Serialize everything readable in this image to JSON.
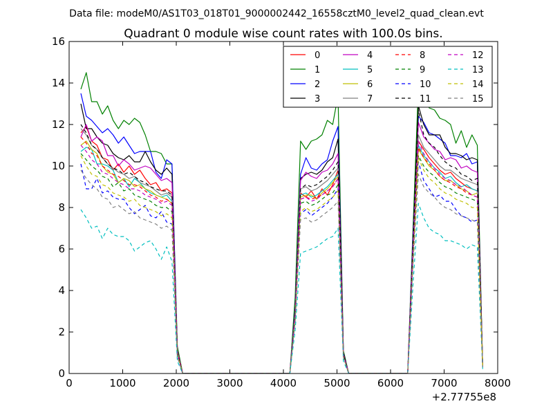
{
  "suptitle": "Data file: modeM0/AS1T03_018T01_9000002442_16558cztM0_level2_quad_clean.evt",
  "chart_data": {
    "type": "line",
    "title": "Quadrant 0 module wise count rates with 100.0s bins.",
    "xlabel": "",
    "ylabel": "",
    "x_offset_label": "+2.77755e8",
    "xlim": [
      0,
      8000
    ],
    "ylim": [
      0,
      16
    ],
    "xticks": [
      0,
      1000,
      2000,
      3000,
      4000,
      5000,
      6000,
      7000,
      8000
    ],
    "yticks": [
      0,
      2,
      4,
      6,
      8,
      10,
      12,
      14,
      16
    ],
    "grid": false,
    "legend": {
      "placement": "top-right",
      "columns": 4
    },
    "x": [
      220,
      320,
      420,
      520,
      620,
      720,
      820,
      920,
      1020,
      1120,
      1220,
      1320,
      1420,
      1520,
      1620,
      1720,
      1820,
      1920,
      2020,
      2120,
      4120,
      4220,
      4320,
      4420,
      4520,
      4620,
      4720,
      4820,
      4920,
      5020,
      5120,
      5220,
      6320,
      6420,
      6520,
      6620,
      6720,
      6820,
      6920,
      7020,
      7120,
      7220,
      7320,
      7420,
      7520,
      7620,
      7720
    ],
    "series": [
      {
        "name": "0",
        "color": "#ff0000",
        "dash": "solid",
        "values": [
          11.6,
          11.9,
          11.2,
          11.0,
          10.4,
          10.3,
          9.8,
          10.1,
          9.7,
          10.0,
          9.6,
          9.8,
          9.4,
          9.1,
          9.2,
          8.8,
          8.9,
          8.7,
          1.2,
          0.0,
          0.0,
          3.0,
          8.7,
          8.5,
          8.8,
          8.4,
          8.9,
          8.6,
          9.1,
          9.8,
          0.9,
          0.0,
          0.0,
          6.0,
          11.2,
          10.8,
          10.4,
          10.1,
          9.8,
          9.6,
          9.7,
          9.4,
          9.2,
          9.0,
          8.9,
          8.8,
          0.3
        ]
      },
      {
        "name": "1",
        "color": "#008000",
        "dash": "solid",
        "values": [
          13.7,
          14.5,
          13.1,
          13.1,
          12.5,
          12.9,
          12.2,
          11.8,
          12.2,
          12.0,
          12.3,
          12.1,
          11.5,
          10.7,
          10.7,
          10.6,
          10.1,
          10.1,
          1.3,
          0.0,
          0.0,
          3.7,
          11.2,
          10.8,
          11.2,
          11.3,
          11.5,
          12.2,
          12.0,
          13.4,
          1.1,
          0.0,
          0.0,
          7.0,
          13.9,
          13.6,
          12.8,
          12.7,
          12.3,
          12.2,
          12.0,
          11.1,
          11.7,
          10.9,
          11.5,
          11.0,
          0.3
        ]
      },
      {
        "name": "2",
        "color": "#0000ff",
        "dash": "solid",
        "values": [
          13.5,
          12.4,
          12.2,
          11.9,
          11.6,
          11.8,
          11.5,
          11.1,
          11.4,
          11.0,
          10.6,
          10.7,
          10.7,
          10.7,
          9.7,
          9.4,
          10.3,
          10.1,
          1.1,
          0.0,
          0.0,
          3.2,
          9.6,
          10.4,
          9.9,
          9.8,
          10.1,
          10.3,
          11.2,
          11.9,
          1.0,
          0.0,
          0.0,
          6.6,
          12.4,
          12.1,
          11.6,
          11.5,
          11.3,
          11.1,
          10.5,
          10.5,
          10.4,
          10.6,
          10.1,
          10.2,
          0.3
        ]
      },
      {
        "name": "3",
        "color": "#000000",
        "dash": "solid",
        "values": [
          13.0,
          11.8,
          11.8,
          11.4,
          11.1,
          11.0,
          10.6,
          10.4,
          10.3,
          10.5,
          10.2,
          10.2,
          10.7,
          10.2,
          9.8,
          9.6,
          9.9,
          9.6,
          1.1,
          0.0,
          0.0,
          3.1,
          9.4,
          9.6,
          9.7,
          9.6,
          9.8,
          10.2,
          10.4,
          11.3,
          1.0,
          0.0,
          0.0,
          6.4,
          12.9,
          12.0,
          11.5,
          11.5,
          11.5,
          10.9,
          10.6,
          10.6,
          10.5,
          10.3,
          10.4,
          10.3,
          0.3
        ]
      },
      {
        "name": "4",
        "color": "#c000c0",
        "dash": "solid",
        "values": [
          11.4,
          12.0,
          11.2,
          11.4,
          11.2,
          10.5,
          10.5,
          10.0,
          10.3,
          10.1,
          9.8,
          9.9,
          10.0,
          9.9,
          9.6,
          9.3,
          9.4,
          9.2,
          1.1,
          0.0,
          0.0,
          3.0,
          9.3,
          9.7,
          9.5,
          9.4,
          9.7,
          9.8,
          10.1,
          10.6,
          0.9,
          0.0,
          0.0,
          6.3,
          12.1,
          11.4,
          11.1,
          10.8,
          10.7,
          10.3,
          10.4,
          10.3,
          9.9,
          10.0,
          9.8,
          9.7,
          0.3
        ]
      },
      {
        "name": "5",
        "color": "#00bfbf",
        "dash": "solid",
        "values": [
          10.7,
          10.9,
          10.8,
          10.1,
          10.1,
          10.0,
          9.8,
          9.2,
          9.4,
          9.0,
          9.4,
          9.2,
          8.9,
          8.7,
          8.6,
          8.5,
          8.6,
          8.3,
          1.0,
          0.0,
          0.0,
          2.9,
          8.6,
          8.7,
          8.5,
          8.6,
          8.8,
          9.0,
          9.3,
          9.6,
          0.9,
          0.0,
          0.0,
          5.9,
          11.0,
          10.5,
          10.2,
          9.9,
          9.7,
          9.4,
          9.5,
          9.2,
          9.0,
          9.1,
          8.9,
          8.8,
          0.3
        ]
      },
      {
        "name": "6",
        "color": "#bfbf00",
        "dash": "solid",
        "values": [
          11.0,
          11.2,
          10.8,
          10.6,
          10.0,
          9.7,
          9.6,
          9.2,
          9.4,
          9.3,
          9.0,
          9.1,
          8.9,
          8.8,
          8.6,
          8.5,
          8.4,
          8.2,
          1.0,
          0.0,
          0.0,
          2.8,
          8.5,
          8.6,
          8.6,
          8.4,
          8.7,
          8.9,
          9.2,
          9.5,
          0.9,
          0.0,
          0.0,
          5.8,
          10.8,
          10.4,
          10.0,
          9.8,
          9.5,
          9.3,
          9.3,
          9.1,
          8.9,
          8.8,
          8.6,
          8.7,
          0.3
        ]
      },
      {
        "name": "7",
        "color": "#808080",
        "dash": "solid",
        "values": [
          11.8,
          11.5,
          11.0,
          10.8,
          10.4,
          10.1,
          9.9,
          9.7,
          9.6,
          9.4,
          9.5,
          9.2,
          9.1,
          9.0,
          8.8,
          8.6,
          8.7,
          8.5,
          1.0,
          0.0,
          0.0,
          2.9,
          8.9,
          9.0,
          8.8,
          8.9,
          9.1,
          9.3,
          9.6,
          9.9,
          0.9,
          0.0,
          0.0,
          6.1,
          11.5,
          10.9,
          10.6,
          10.3,
          10.0,
          9.8,
          9.8,
          9.6,
          9.4,
          9.3,
          9.2,
          9.1,
          0.3
        ]
      },
      {
        "name": "8",
        "color": "#ff0000",
        "dash": "dashed",
        "values": [
          11.4,
          11.1,
          10.6,
          10.5,
          10.0,
          9.8,
          9.6,
          9.5,
          9.3,
          9.1,
          9.1,
          9.0,
          8.8,
          8.6,
          8.5,
          8.3,
          8.4,
          8.2,
          1.0,
          0.0,
          0.0,
          2.8,
          8.4,
          8.5,
          8.4,
          8.5,
          8.6,
          8.8,
          9.0,
          9.4,
          0.9,
          0.0,
          0.0,
          5.8,
          10.9,
          10.4,
          10.1,
          9.8,
          9.5,
          9.3,
          9.2,
          9.0,
          8.9,
          8.7,
          8.6,
          8.5,
          0.3
        ]
      },
      {
        "name": "9",
        "color": "#008000",
        "dash": "dashed",
        "values": [
          10.6,
          10.3,
          10.0,
          9.8,
          9.5,
          9.4,
          9.0,
          9.2,
          8.8,
          8.9,
          8.6,
          8.5,
          8.4,
          8.3,
          8.1,
          8.0,
          8.0,
          7.8,
          0.9,
          0.0,
          0.0,
          2.7,
          8.2,
          8.3,
          8.1,
          8.2,
          8.4,
          8.6,
          8.7,
          9.1,
          0.8,
          0.0,
          0.0,
          5.6,
          10.5,
          10.0,
          9.7,
          9.5,
          9.2,
          9.0,
          8.9,
          8.7,
          8.6,
          8.5,
          8.4,
          8.3,
          0.3
        ]
      },
      {
        "name": "10",
        "color": "#0000ff",
        "dash": "dashed",
        "values": [
          10.1,
          8.9,
          8.9,
          9.4,
          8.7,
          8.8,
          8.5,
          8.4,
          8.4,
          8.0,
          7.7,
          7.9,
          8.1,
          7.6,
          7.5,
          7.8,
          7.3,
          7.2,
          0.8,
          0.0,
          0.0,
          2.6,
          7.7,
          7.9,
          7.6,
          7.8,
          8.0,
          8.2,
          8.5,
          8.9,
          0.8,
          0.0,
          0.0,
          5.4,
          10.2,
          9.3,
          8.9,
          8.5,
          8.6,
          8.3,
          8.3,
          7.9,
          7.6,
          7.5,
          7.3,
          7.4,
          0.3
        ]
      },
      {
        "name": "11",
        "color": "#000000",
        "dash": "dashed",
        "values": [
          12.0,
          11.6,
          11.0,
          10.8,
          10.4,
          10.1,
          9.9,
          9.8,
          9.6,
          9.7,
          9.5,
          9.3,
          9.2,
          9.0,
          8.9,
          8.8,
          8.8,
          8.6,
          1.0,
          0.0,
          0.0,
          2.9,
          8.9,
          9.1,
          9.0,
          9.1,
          9.3,
          9.5,
          9.8,
          10.2,
          0.9,
          0.0,
          0.0,
          6.2,
          12.7,
          11.5,
          11.1,
          10.9,
          10.5,
          10.2,
          10.0,
          9.9,
          9.6,
          9.5,
          9.3,
          9.4,
          0.3
        ]
      },
      {
        "name": "12",
        "color": "#c000c0",
        "dash": "dashed",
        "values": [
          11.0,
          10.7,
          10.3,
          10.1,
          9.7,
          9.6,
          9.4,
          9.2,
          9.1,
          8.9,
          8.9,
          8.8,
          8.6,
          8.5,
          8.4,
          8.2,
          8.3,
          8.1,
          0.9,
          0.0,
          0.0,
          2.8,
          8.4,
          8.5,
          8.3,
          8.4,
          8.6,
          8.8,
          9.0,
          9.4,
          0.9,
          0.0,
          0.0,
          5.9,
          11.2,
          10.6,
          10.2,
          9.9,
          9.6,
          9.4,
          9.3,
          9.1,
          9.0,
          8.8,
          8.6,
          8.5,
          0.3
        ]
      },
      {
        "name": "13",
        "color": "#00bfbf",
        "dash": "dashed",
        "values": [
          7.9,
          7.5,
          7.0,
          7.1,
          6.5,
          7.0,
          6.7,
          6.6,
          6.6,
          6.4,
          5.9,
          6.1,
          6.3,
          6.4,
          6.0,
          5.5,
          6.1,
          5.4,
          0.6,
          0.0,
          0.0,
          2.1,
          5.8,
          5.9,
          6.0,
          6.1,
          6.3,
          6.5,
          6.6,
          7.0,
          0.6,
          0.0,
          0.0,
          4.3,
          8.2,
          7.5,
          7.0,
          6.8,
          6.7,
          6.4,
          6.4,
          6.3,
          6.2,
          6.0,
          6.2,
          6.1,
          0.2
        ]
      },
      {
        "name": "14",
        "color": "#bfbf00",
        "dash": "dashed",
        "values": [
          10.5,
          10.0,
          9.6,
          9.5,
          9.1,
          9.0,
          8.7,
          8.6,
          8.5,
          8.3,
          8.4,
          8.1,
          8.0,
          7.9,
          7.8,
          7.6,
          7.7,
          7.5,
          0.9,
          0.0,
          0.0,
          2.6,
          7.8,
          8.0,
          7.8,
          7.9,
          8.1,
          8.3,
          8.5,
          8.8,
          0.8,
          0.0,
          0.0,
          5.5,
          10.4,
          9.8,
          9.4,
          9.2,
          8.9,
          8.7,
          8.6,
          8.4,
          8.3,
          8.2,
          8.0,
          8.0,
          0.3
        ]
      },
      {
        "name": "15",
        "color": "#808080",
        "dash": "dashed",
        "values": [
          9.8,
          9.4,
          9.1,
          8.9,
          8.5,
          8.4,
          8.0,
          8.1,
          7.9,
          7.7,
          7.8,
          7.5,
          7.4,
          7.3,
          7.2,
          7.0,
          7.1,
          6.9,
          0.8,
          0.0,
          0.0,
          2.5,
          7.4,
          7.5,
          7.3,
          7.4,
          7.6,
          7.8,
          8.0,
          8.3,
          0.8,
          0.0,
          0.0,
          5.2,
          9.6,
          9.0,
          8.7,
          8.5,
          8.2,
          8.0,
          7.9,
          7.7,
          7.6,
          7.5,
          7.4,
          7.3,
          0.3
        ]
      }
    ]
  }
}
